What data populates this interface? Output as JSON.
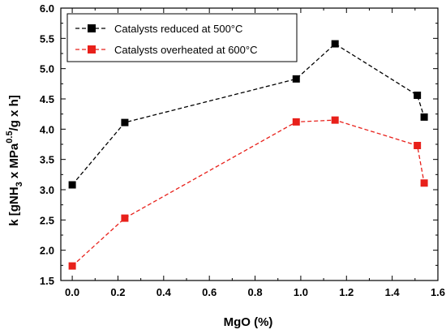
{
  "chart_data": {
    "type": "line",
    "xlabel": "MgO (%)",
    "ylabel": "k [gNH3 x MPa0.5/g x h]",
    "xlim": [
      -0.05,
      1.6
    ],
    "ylim": [
      1.5,
      6.0
    ],
    "x_ticks": [
      "0.0",
      "0.2",
      "0.4",
      "0.6",
      "0.8",
      "1.0",
      "1.2",
      "1.4",
      "1.6"
    ],
    "y_ticks": [
      "1.5",
      "2.0",
      "2.5",
      "3.0",
      "3.5",
      "4.0",
      "4.5",
      "5.0",
      "5.5",
      "6.0"
    ],
    "legend_position": "top-left",
    "grid": false,
    "series": [
      {
        "name": "Catalysts reduced at 500°C",
        "color": "#000000",
        "line_style": "dashed",
        "marker": "square",
        "points": [
          {
            "x": 0.0,
            "y": 3.08
          },
          {
            "x": 0.23,
            "y": 4.11
          },
          {
            "x": 0.98,
            "y": 4.83
          },
          {
            "x": 1.15,
            "y": 5.41
          },
          {
            "x": 1.51,
            "y": 4.56
          },
          {
            "x": 1.54,
            "y": 4.2
          }
        ]
      },
      {
        "name": "Catalysts overheated at 600°C",
        "color": "#e8201a",
        "line_style": "dashed",
        "marker": "square",
        "points": [
          {
            "x": 0.0,
            "y": 1.74
          },
          {
            "x": 0.23,
            "y": 2.53
          },
          {
            "x": 0.98,
            "y": 4.12
          },
          {
            "x": 1.15,
            "y": 4.15
          },
          {
            "x": 1.51,
            "y": 3.73
          },
          {
            "x": 1.54,
            "y": 3.11
          }
        ]
      }
    ]
  }
}
